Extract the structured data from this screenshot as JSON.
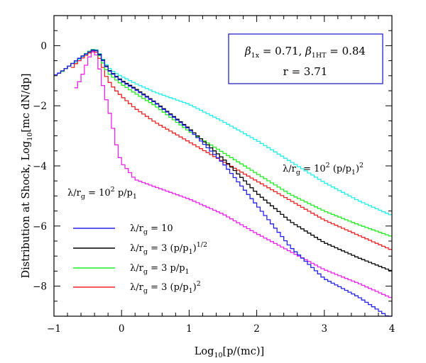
{
  "chart_data": {
    "type": "line",
    "xlabel_main": "Log",
    "xlabel_sub": "10",
    "xlabel_rest": "[p/(mc)]",
    "ylabel_prefix": "Distribution at Shock,  Log",
    "ylabel_sub": "10",
    "ylabel_rest": "[mc dN/dp]",
    "xlim": [
      -1,
      4
    ],
    "ylim": [
      -9,
      1
    ],
    "xticks": [
      -1,
      0,
      1,
      2,
      3,
      4
    ],
    "yticks": [
      0,
      -2,
      -4,
      -6,
      -8
    ],
    "grid": false,
    "step_width": 0.05,
    "param_box": {
      "line1": "β1x = 0.71,  β1HT = 0.84",
      "beta1x_sym": "β",
      "beta1x_sub": "1x",
      "beta1x_val": " = 0.71,  ",
      "beta1ht_sym": "β",
      "beta1ht_sub": "1HT",
      "beta1ht_val": " = 0.84",
      "line2": "r = 3.71"
    },
    "annotations": [
      {
        "text": "λ/rg = 10² (p/p1)²",
        "near_series": "cyan"
      },
      {
        "text": "λ/rg = 10² p/p1",
        "near_series": "magenta"
      }
    ],
    "legend_position": "lower-left",
    "series": [
      {
        "id": "blue",
        "name": "λ/rg = 10",
        "color": "#2222ee",
        "in_legend": true,
        "points": [
          [
            -1.0,
            -1.0
          ],
          [
            -0.9,
            -0.88
          ],
          [
            -0.8,
            -0.72
          ],
          [
            -0.7,
            -0.55
          ],
          [
            -0.6,
            -0.38
          ],
          [
            -0.5,
            -0.24
          ],
          [
            -0.45,
            -0.17
          ],
          [
            -0.4,
            -0.13
          ],
          [
            -0.35,
            -0.22
          ],
          [
            -0.3,
            -0.4
          ],
          [
            -0.25,
            -0.6
          ],
          [
            -0.2,
            -0.8
          ],
          [
            -0.1,
            -1.0
          ],
          [
            0.0,
            -1.18
          ],
          [
            0.2,
            -1.45
          ],
          [
            0.5,
            -1.9
          ],
          [
            1.0,
            -2.78
          ],
          [
            1.5,
            -3.9
          ],
          [
            2.0,
            -5.3
          ],
          [
            2.5,
            -6.7
          ],
          [
            3.0,
            -7.75
          ],
          [
            3.5,
            -8.35
          ],
          [
            3.8,
            -8.8
          ],
          [
            4.0,
            -9.1
          ]
        ]
      },
      {
        "id": "black",
        "name": "λ/rg = 3 (p/p1)1/2",
        "color": "#000000",
        "in_legend": true,
        "points": [
          [
            -0.95,
            -0.95
          ],
          [
            -0.9,
            -0.88
          ],
          [
            -0.8,
            -0.72
          ],
          [
            -0.7,
            -0.55
          ],
          [
            -0.6,
            -0.38
          ],
          [
            -0.5,
            -0.24
          ],
          [
            -0.45,
            -0.17
          ],
          [
            -0.4,
            -0.12
          ],
          [
            -0.35,
            -0.2
          ],
          [
            -0.3,
            -0.38
          ],
          [
            -0.25,
            -0.58
          ],
          [
            -0.2,
            -0.78
          ],
          [
            -0.1,
            -0.98
          ],
          [
            0.0,
            -1.15
          ],
          [
            0.2,
            -1.42
          ],
          [
            0.5,
            -1.88
          ],
          [
            1.0,
            -2.75
          ],
          [
            1.5,
            -3.75
          ],
          [
            2.0,
            -4.9
          ],
          [
            2.5,
            -5.85
          ],
          [
            3.0,
            -6.55
          ],
          [
            3.5,
            -7.05
          ],
          [
            4.0,
            -7.5
          ]
        ]
      },
      {
        "id": "green",
        "name": "λ/rg = 3 p/p1",
        "color": "#22ee22",
        "in_legend": true,
        "points": [
          [
            -0.9,
            -0.9
          ],
          [
            -0.8,
            -0.72
          ],
          [
            -0.7,
            -0.55
          ],
          [
            -0.6,
            -0.38
          ],
          [
            -0.5,
            -0.22
          ],
          [
            -0.45,
            -0.15
          ],
          [
            -0.4,
            -0.12
          ],
          [
            -0.35,
            -0.22
          ],
          [
            -0.3,
            -0.45
          ],
          [
            -0.25,
            -0.7
          ],
          [
            -0.2,
            -0.9
          ],
          [
            -0.1,
            -1.1
          ],
          [
            0.0,
            -1.28
          ],
          [
            0.2,
            -1.58
          ],
          [
            0.5,
            -2.0
          ],
          [
            1.0,
            -2.85
          ],
          [
            1.5,
            -3.55
          ],
          [
            2.0,
            -4.25
          ],
          [
            2.5,
            -4.95
          ],
          [
            3.0,
            -5.5
          ],
          [
            3.5,
            -5.95
          ],
          [
            4.0,
            -6.35
          ]
        ]
      },
      {
        "id": "red",
        "name": "λ/rg = 3 (p/p1)²",
        "color": "#ee2222",
        "in_legend": true,
        "points": [
          [
            -0.75,
            -0.8
          ],
          [
            -0.7,
            -0.65
          ],
          [
            -0.6,
            -0.45
          ],
          [
            -0.5,
            -0.28
          ],
          [
            -0.45,
            -0.2
          ],
          [
            -0.4,
            -0.15
          ],
          [
            -0.35,
            -0.3
          ],
          [
            -0.3,
            -0.55
          ],
          [
            -0.25,
            -0.9
          ],
          [
            -0.2,
            -1.15
          ],
          [
            -0.1,
            -1.45
          ],
          [
            0.0,
            -1.68
          ],
          [
            0.2,
            -2.08
          ],
          [
            0.5,
            -2.55
          ],
          [
            1.0,
            -3.2
          ],
          [
            1.5,
            -3.85
          ],
          [
            2.0,
            -4.5
          ],
          [
            2.5,
            -5.15
          ],
          [
            3.0,
            -5.8
          ],
          [
            3.5,
            -6.3
          ],
          [
            4.0,
            -6.8
          ]
        ]
      },
      {
        "id": "cyan",
        "name": "λ/rg = 10² (p/p1)²",
        "color": "#22eeee",
        "in_legend": false,
        "points": [
          [
            -0.7,
            -0.6
          ],
          [
            -0.6,
            -0.4
          ],
          [
            -0.5,
            -0.25
          ],
          [
            -0.45,
            -0.15
          ],
          [
            -0.4,
            -0.1
          ],
          [
            -0.35,
            -0.18
          ],
          [
            -0.3,
            -0.35
          ],
          [
            -0.25,
            -0.55
          ],
          [
            -0.2,
            -0.72
          ],
          [
            -0.1,
            -0.9
          ],
          [
            0.0,
            -1.02
          ],
          [
            0.2,
            -1.25
          ],
          [
            0.5,
            -1.55
          ],
          [
            1.0,
            -1.95
          ],
          [
            1.5,
            -2.52
          ],
          [
            2.0,
            -3.15
          ],
          [
            2.5,
            -3.85
          ],
          [
            3.0,
            -4.55
          ],
          [
            3.5,
            -5.15
          ],
          [
            4.0,
            -5.65
          ]
        ]
      },
      {
        "id": "magenta",
        "name": "λ/rg = 10² p/p1",
        "color": "#ee22ee",
        "in_legend": false,
        "points": [
          [
            -0.7,
            -1.5
          ],
          [
            -0.6,
            -1.1
          ],
          [
            -0.5,
            -0.5
          ],
          [
            -0.45,
            -0.25
          ],
          [
            -0.4,
            -0.17
          ],
          [
            -0.35,
            -0.45
          ],
          [
            -0.3,
            -1.1
          ],
          [
            -0.25,
            -1.55
          ],
          [
            -0.2,
            -2.05
          ],
          [
            -0.15,
            -2.45
          ],
          [
            -0.1,
            -3.05
          ],
          [
            -0.05,
            -3.55
          ],
          [
            0.0,
            -3.9
          ],
          [
            0.1,
            -4.15
          ],
          [
            0.2,
            -4.45
          ],
          [
            0.5,
            -4.7
          ],
          [
            1.0,
            -5.1
          ],
          [
            1.5,
            -5.6
          ],
          [
            2.0,
            -6.25
          ],
          [
            2.5,
            -6.85
          ],
          [
            3.0,
            -7.45
          ],
          [
            3.5,
            -7.9
          ],
          [
            4.0,
            -8.4
          ]
        ]
      }
    ]
  },
  "labels": {
    "legend_blue": {
      "sym": "λ/r",
      "sub": "g",
      "rest": " = 10",
      "sup": ""
    },
    "legend_black": {
      "sym": "λ/r",
      "sub": "g",
      "rest": " = 3 (p/p",
      "sub2": "1",
      "rest2": ")",
      "sup": "1/2"
    },
    "legend_green": {
      "sym": "λ/r",
      "sub": "g",
      "rest": " = 3 p/p",
      "sub2": "1"
    },
    "legend_red": {
      "sym": "λ/r",
      "sub": "g",
      "rest": " = 3 (p/p",
      "sub2": "1",
      "rest2": ")",
      "sup": "2"
    },
    "anno_cyan": {
      "sym": "λ/r",
      "sub": "g",
      "rest": " = 10",
      "sup": "2",
      "rest2": " (p/p",
      "sub2": "1",
      "rest3": ")",
      "sup2": "2"
    },
    "anno_magenta": {
      "sym": "λ/r",
      "sub": "g",
      "rest": " = 10",
      "sup": "2",
      "rest2": " p/p",
      "sub2": "1"
    }
  }
}
